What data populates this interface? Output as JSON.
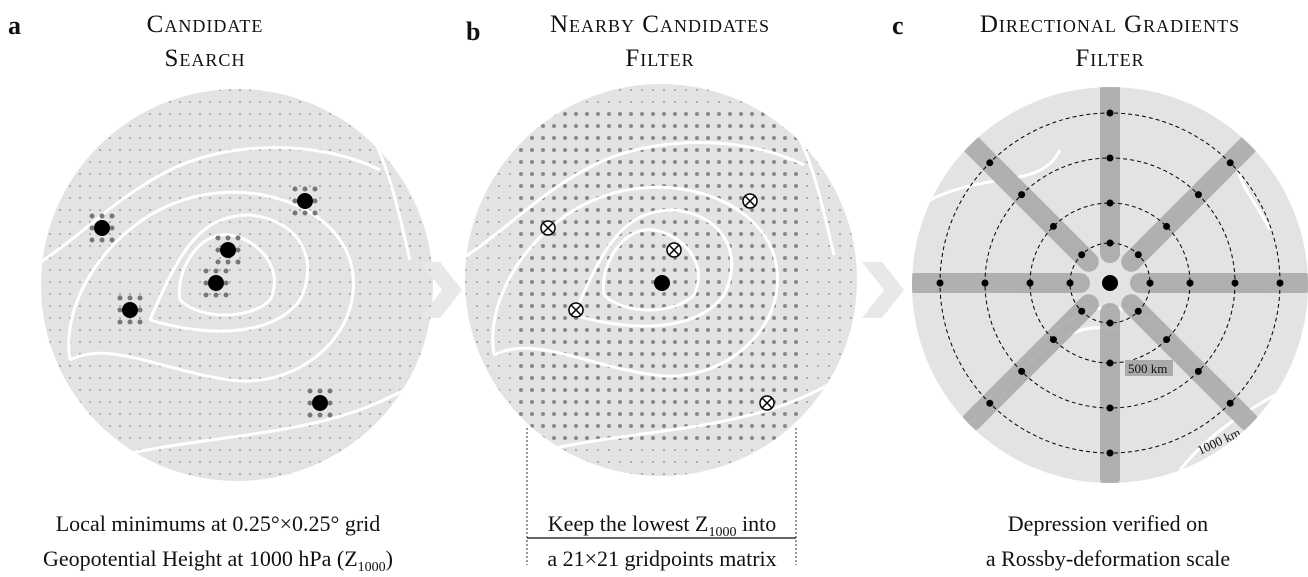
{
  "panels": [
    {
      "label": "a",
      "title": [
        "Candidate",
        "Search"
      ],
      "caption": [
        [
          "Local minimums at 0.25°×0.25° grid"
        ],
        [
          "Geopotential Height at 1000 hPa (Z",
          "1000",
          ")"
        ]
      ]
    },
    {
      "label": "b",
      "title": [
        "Nearby Candidates",
        "Filter"
      ],
      "caption": [
        [
          "Keep the lowest Z",
          "1000",
          " into"
        ],
        [
          "a 21×21 gridpoints matrix"
        ]
      ]
    },
    {
      "label": "c",
      "title": [
        "Directional Gradients",
        "Filter"
      ],
      "caption": [
        [
          "Depression verified on"
        ],
        [
          "a Rossby-deformation scale"
        ]
      ],
      "annotations": [
        "500 km",
        "1000 km"
      ]
    }
  ]
}
